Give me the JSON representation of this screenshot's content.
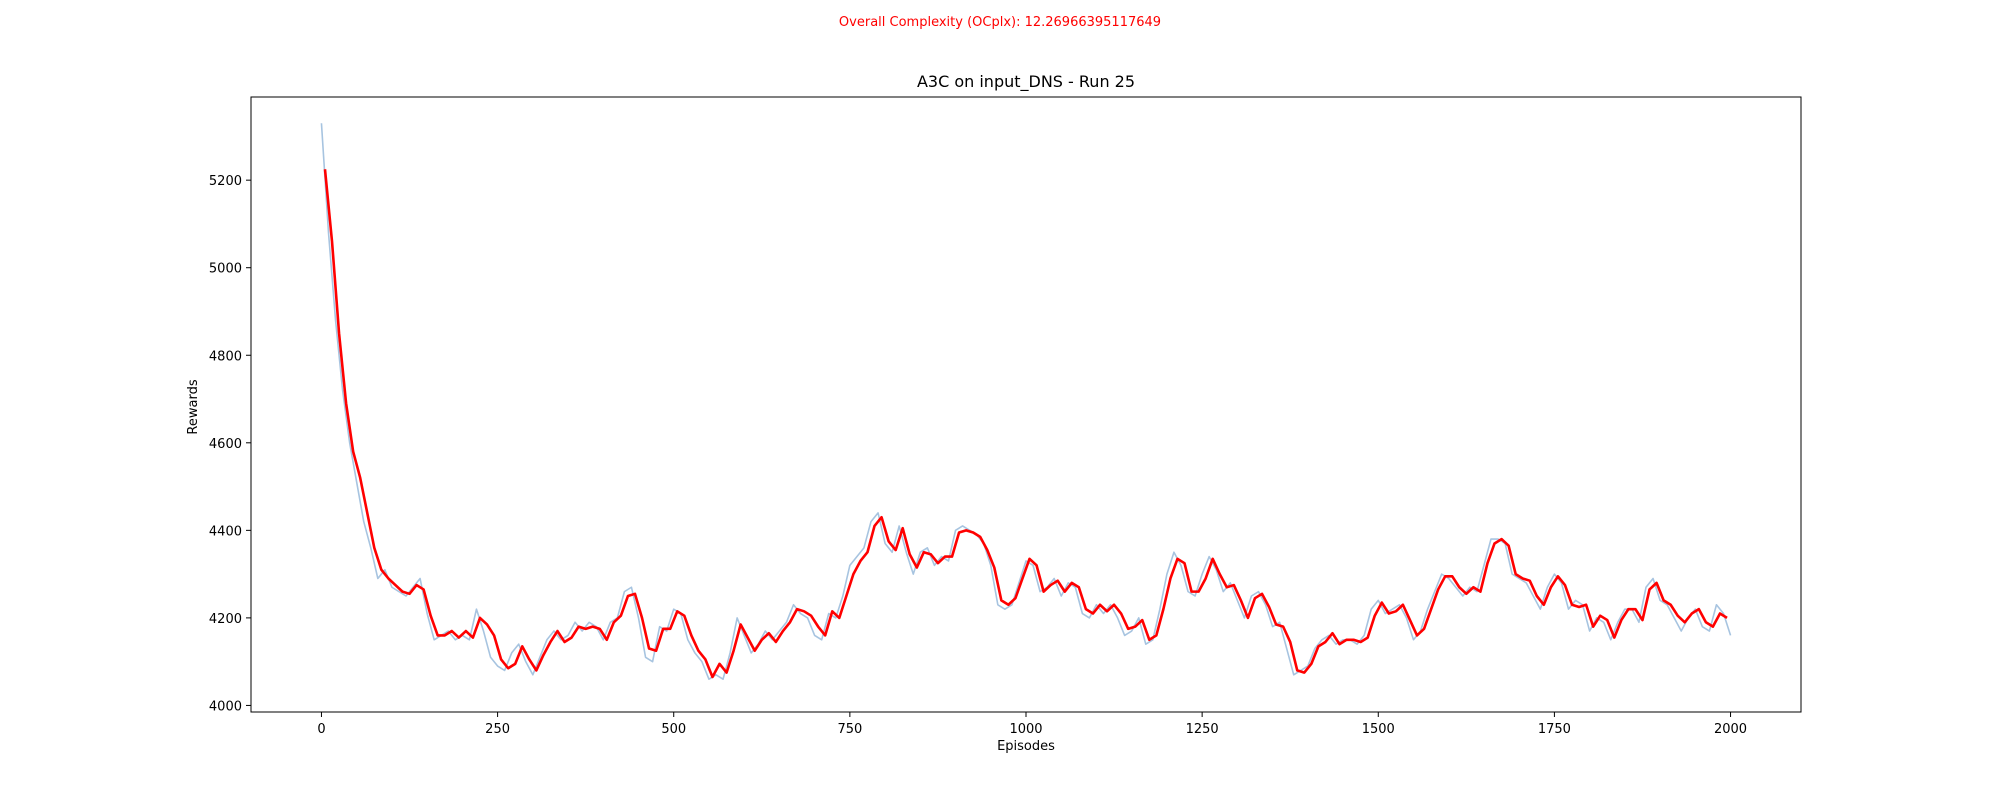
{
  "chart_data": {
    "type": "line",
    "suptitle": "Overall Complexity (OCplx): 12.26966395117649",
    "title": "A3C on input_DNS - Run 25",
    "xlabel": "Episodes",
    "ylabel": "Rewards",
    "xlim": [
      -100,
      2100
    ],
    "ylim": [
      3985,
      5390
    ],
    "xticks": [
      0,
      250,
      500,
      750,
      1000,
      1250,
      1500,
      1750,
      2000
    ],
    "yticks": [
      4000,
      4200,
      4400,
      4600,
      4800,
      5000,
      5200
    ],
    "grid": false,
    "colors": {
      "raw": "#a7c4e0",
      "smoothed": "#ff0000",
      "suptitle": "#ff0000"
    },
    "series": [
      {
        "role": "raw",
        "x": [
          0,
          10,
          20,
          30,
          40,
          50,
          60,
          70,
          80,
          90,
          100,
          110,
          120,
          130,
          140,
          150,
          160,
          170,
          180,
          190,
          200,
          210,
          220,
          230,
          240,
          250,
          260,
          270,
          280,
          290,
          300,
          310,
          320,
          330,
          340,
          350,
          360,
          370,
          380,
          390,
          400,
          410,
          420,
          430,
          440,
          450,
          460,
          470,
          480,
          490,
          500,
          510,
          520,
          530,
          540,
          550,
          560,
          570,
          580,
          590,
          600,
          610,
          620,
          630,
          640,
          650,
          660,
          670,
          680,
          690,
          700,
          710,
          720,
          730,
          740,
          750,
          760,
          770,
          780,
          790,
          800,
          810,
          820,
          830,
          840,
          850,
          860,
          870,
          880,
          890,
          900,
          910,
          920,
          930,
          940,
          950,
          960,
          970,
          980,
          990,
          1000,
          1010,
          1020,
          1030,
          1040,
          1050,
          1060,
          1070,
          1080,
          1090,
          1100,
          1110,
          1120,
          1130,
          1140,
          1150,
          1160,
          1170,
          1180,
          1190,
          1200,
          1210,
          1220,
          1230,
          1240,
          1250,
          1260,
          1270,
          1280,
          1290,
          1300,
          1310,
          1320,
          1330,
          1340,
          1350,
          1360,
          1370,
          1380,
          1390,
          1400,
          1410,
          1420,
          1430,
          1440,
          1450,
          1460,
          1470,
          1480,
          1490,
          1500,
          1510,
          1520,
          1530,
          1540,
          1550,
          1560,
          1570,
          1580,
          1590,
          1600,
          1610,
          1620,
          1630,
          1640,
          1650,
          1660,
          1670,
          1680,
          1690,
          1700,
          1710,
          1720,
          1730,
          1740,
          1750,
          1760,
          1770,
          1780,
          1790,
          1800,
          1810,
          1820,
          1830,
          1840,
          1850,
          1860,
          1870,
          1880,
          1890,
          1900,
          1910,
          1920,
          1930,
          1940,
          1950,
          1960,
          1970,
          1980,
          1990,
          2000
        ],
        "values": [
          5330,
          5080,
          4880,
          4720,
          4600,
          4510,
          4420,
          4360,
          4290,
          4310,
          4270,
          4260,
          4250,
          4270,
          4290,
          4210,
          4150,
          4160,
          4170,
          4150,
          4160,
          4150,
          4220,
          4170,
          4110,
          4090,
          4080,
          4120,
          4140,
          4100,
          4070,
          4110,
          4150,
          4170,
          4150,
          4160,
          4190,
          4170,
          4190,
          4180,
          4150,
          4190,
          4200,
          4260,
          4270,
          4200,
          4110,
          4100,
          4180,
          4170,
          4220,
          4210,
          4150,
          4120,
          4100,
          4060,
          4070,
          4060,
          4120,
          4200,
          4160,
          4120,
          4140,
          4170,
          4150,
          4170,
          4190,
          4230,
          4210,
          4200,
          4160,
          4150,
          4210,
          4200,
          4250,
          4320,
          4340,
          4360,
          4420,
          4440,
          4370,
          4350,
          4410,
          4350,
          4300,
          4350,
          4360,
          4320,
          4340,
          4330,
          4400,
          4410,
          4400,
          4390,
          4370,
          4320,
          4230,
          4220,
          4230,
          4280,
          4330,
          4320,
          4260,
          4270,
          4290,
          4250,
          4280,
          4270,
          4210,
          4200,
          4230,
          4210,
          4230,
          4200,
          4160,
          4170,
          4200,
          4140,
          4150,
          4220,
          4300,
          4350,
          4320,
          4260,
          4250,
          4300,
          4340,
          4310,
          4260,
          4280,
          4240,
          4200,
          4250,
          4260,
          4230,
          4180,
          4190,
          4130,
          4070,
          4080,
          4090,
          4130,
          4150,
          4160,
          4140,
          4150,
          4150,
          4140,
          4160,
          4220,
          4240,
          4210,
          4220,
          4230,
          4200,
          4150,
          4170,
          4220,
          4260,
          4300,
          4290,
          4270,
          4250,
          4270,
          4260,
          4320,
          4380,
          4380,
          4370,
          4300,
          4290,
          4280,
          4250,
          4220,
          4270,
          4300,
          4280,
          4220,
          4240,
          4230,
          4170,
          4200,
          4190,
          4150,
          4190,
          4220,
          4220,
          4190,
          4270,
          4290,
          4240,
          4230,
          4200,
          4170,
          4200,
          4220,
          4180,
          4170,
          4230,
          4210,
          4160
        ]
      },
      {
        "role": "smoothed",
        "x": [
          5,
          15,
          25,
          35,
          45,
          55,
          65,
          75,
          85,
          95,
          105,
          115,
          125,
          135,
          145,
          155,
          165,
          175,
          185,
          195,
          205,
          215,
          225,
          235,
          245,
          255,
          265,
          275,
          285,
          295,
          305,
          315,
          325,
          335,
          345,
          355,
          365,
          375,
          385,
          395,
          405,
          415,
          425,
          435,
          445,
          455,
          465,
          475,
          485,
          495,
          505,
          515,
          525,
          535,
          545,
          555,
          565,
          575,
          585,
          595,
          605,
          615,
          625,
          635,
          645,
          655,
          665,
          675,
          685,
          695,
          705,
          715,
          725,
          735,
          745,
          755,
          765,
          775,
          785,
          795,
          805,
          815,
          825,
          835,
          845,
          855,
          865,
          875,
          885,
          895,
          905,
          915,
          925,
          935,
          945,
          955,
          965,
          975,
          985,
          995,
          1005,
          1015,
          1025,
          1035,
          1045,
          1055,
          1065,
          1075,
          1085,
          1095,
          1105,
          1115,
          1125,
          1135,
          1145,
          1155,
          1165,
          1175,
          1185,
          1195,
          1205,
          1215,
          1225,
          1235,
          1245,
          1255,
          1265,
          1275,
          1285,
          1295,
          1305,
          1315,
          1325,
          1335,
          1345,
          1355,
          1365,
          1375,
          1385,
          1395,
          1405,
          1415,
          1425,
          1435,
          1445,
          1455,
          1465,
          1475,
          1485,
          1495,
          1505,
          1515,
          1525,
          1535,
          1545,
          1555,
          1565,
          1575,
          1585,
          1595,
          1605,
          1615,
          1625,
          1635,
          1645,
          1655,
          1665,
          1675,
          1685,
          1695,
          1705,
          1715,
          1725,
          1735,
          1745,
          1755,
          1765,
          1775,
          1785,
          1795,
          1805,
          1815,
          1825,
          1835,
          1845,
          1855,
          1865,
          1875,
          1885,
          1895,
          1905,
          1915,
          1925,
          1935,
          1945,
          1955,
          1965,
          1975,
          1985,
          1995
        ],
        "values": [
          5225,
          5060,
          4850,
          4690,
          4580,
          4520,
          4440,
          4360,
          4310,
          4290,
          4275,
          4260,
          4255,
          4275,
          4265,
          4205,
          4160,
          4160,
          4170,
          4155,
          4170,
          4155,
          4200,
          4185,
          4160,
          4105,
          4085,
          4095,
          4135,
          4105,
          4080,
          4115,
          4145,
          4170,
          4145,
          4155,
          4180,
          4175,
          4180,
          4175,
          4150,
          4190,
          4205,
          4250,
          4255,
          4200,
          4130,
          4125,
          4175,
          4175,
          4215,
          4205,
          4160,
          4125,
          4105,
          4065,
          4095,
          4075,
          4125,
          4185,
          4155,
          4125,
          4150,
          4165,
          4145,
          4170,
          4190,
          4220,
          4215,
          4205,
          4180,
          4160,
          4215,
          4200,
          4250,
          4300,
          4330,
          4350,
          4410,
          4430,
          4375,
          4355,
          4405,
          4345,
          4315,
          4350,
          4345,
          4325,
          4340,
          4340,
          4395,
          4400,
          4395,
          4385,
          4355,
          4315,
          4240,
          4230,
          4245,
          4290,
          4335,
          4320,
          4260,
          4275,
          4285,
          4260,
          4280,
          4270,
          4220,
          4210,
          4230,
          4215,
          4230,
          4210,
          4175,
          4180,
          4195,
          4150,
          4160,
          4220,
          4290,
          4335,
          4325,
          4260,
          4260,
          4290,
          4335,
          4300,
          4270,
          4275,
          4240,
          4200,
          4245,
          4255,
          4225,
          4185,
          4180,
          4145,
          4080,
          4075,
          4095,
          4135,
          4145,
          4165,
          4140,
          4150,
          4150,
          4145,
          4155,
          4205,
          4235,
          4210,
          4215,
          4230,
          4195,
          4160,
          4175,
          4220,
          4265,
          4295,
          4295,
          4270,
          4255,
          4270,
          4260,
          4325,
          4370,
          4380,
          4365,
          4300,
          4290,
          4285,
          4250,
          4230,
          4270,
          4295,
          4275,
          4230,
          4225,
          4230,
          4180,
          4205,
          4195,
          4155,
          4195,
          4220,
          4220,
          4195,
          4265,
          4280,
          4240,
          4230,
          4205,
          4190,
          4210,
          4220,
          4190,
          4180,
          4210,
          4200
        ]
      }
    ]
  }
}
